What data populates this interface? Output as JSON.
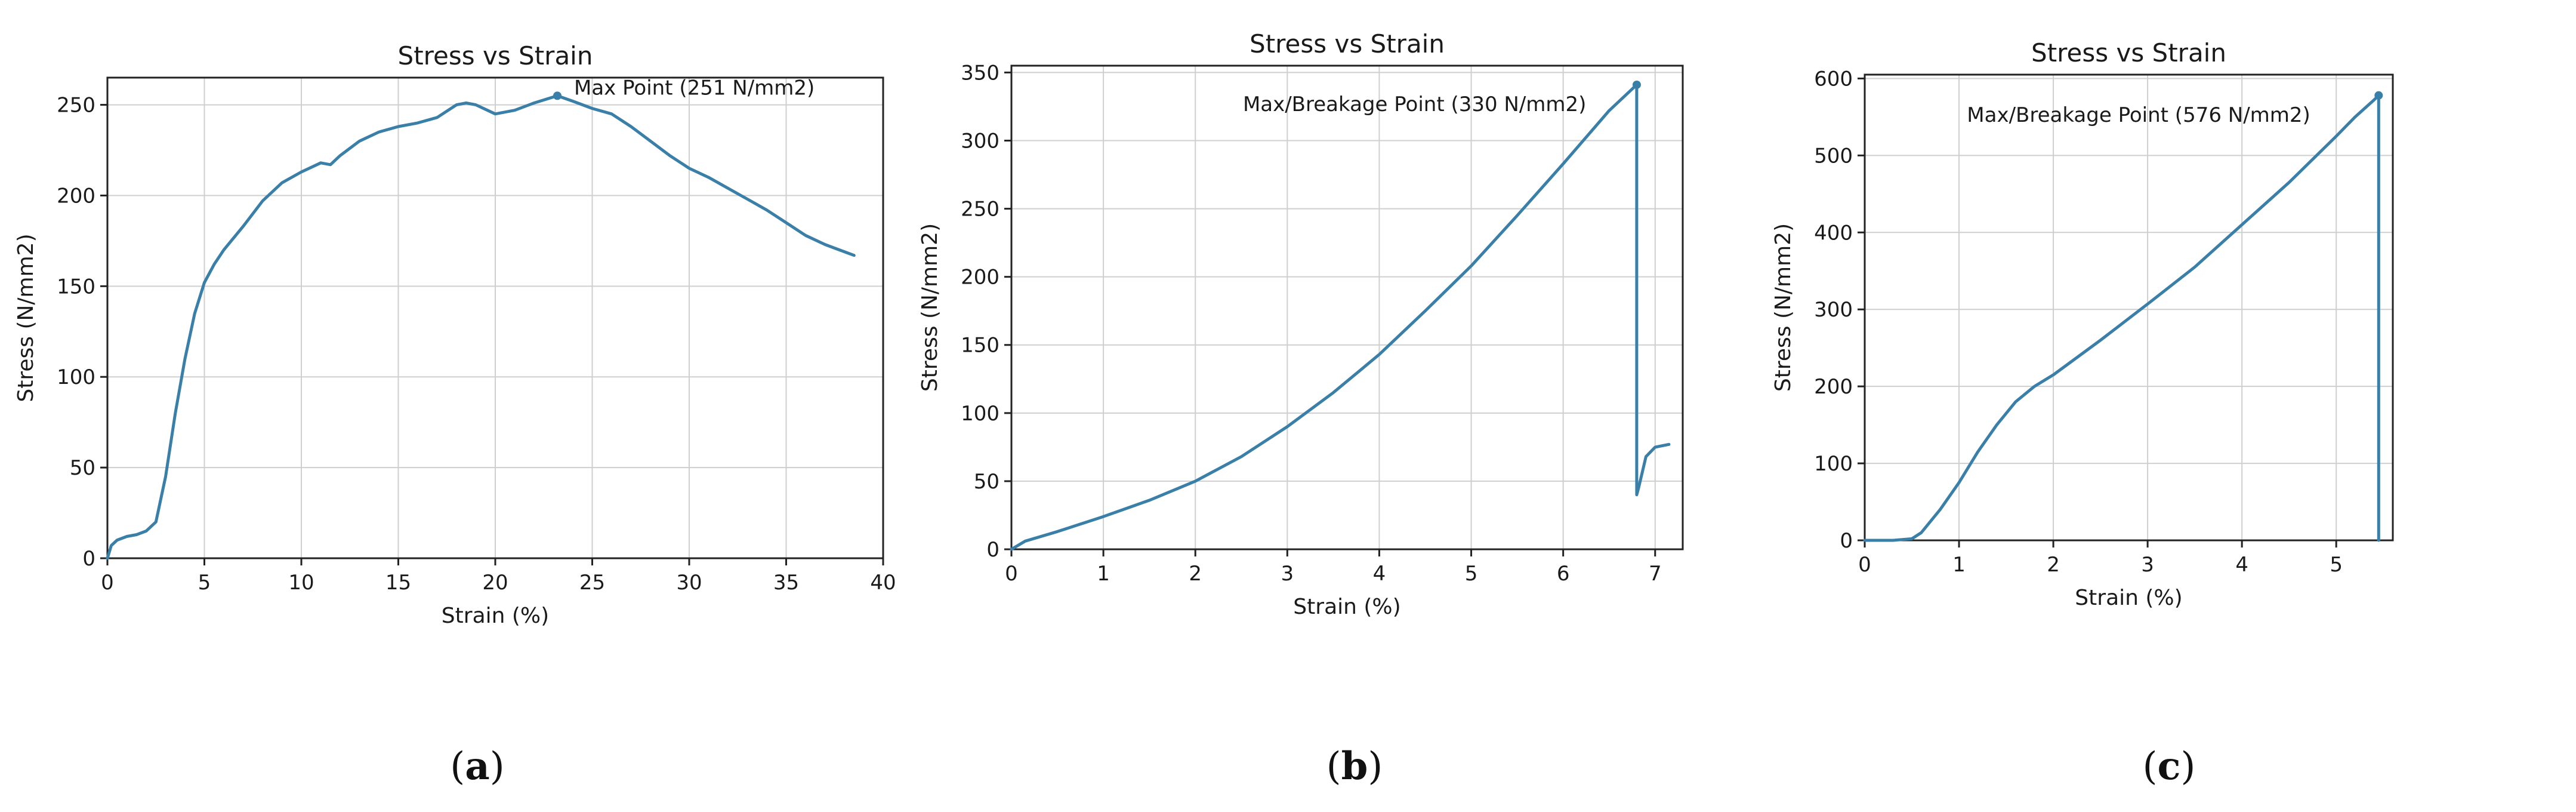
{
  "chart_data": [
    {
      "type": "line",
      "title": "Stress vs Strain",
      "xlabel": "Strain (%)",
      "ylabel": "Stress (N/mm2)",
      "xlim": [
        0,
        40
      ],
      "ylim": [
        0,
        265
      ],
      "xticks": [
        0,
        5,
        10,
        15,
        20,
        25,
        30,
        35,
        40
      ],
      "yticks": [
        0,
        50,
        100,
        150,
        200,
        250
      ],
      "grid": true,
      "line_color": "#3a7fa8",
      "annotation": {
        "text": "Max Point (251 N/mm2)",
        "x": 23.2,
        "y": 255
      },
      "caption_letter": "a",
      "series": [
        {
          "x": [
            0,
            0.2,
            0.5,
            1,
            1.5,
            2,
            2.5,
            3,
            3.5,
            4,
            4.5,
            5,
            5.5,
            6,
            7,
            8,
            9,
            10,
            11,
            11.5,
            12,
            13,
            14,
            15,
            16,
            17,
            18,
            18.5,
            19,
            20,
            21,
            22,
            23.2,
            24,
            25,
            26,
            27,
            28,
            29,
            30,
            31,
            32,
            33,
            34,
            35,
            36,
            37,
            38,
            38.5
          ],
          "y": [
            0,
            7,
            10,
            12,
            13,
            15,
            20,
            45,
            80,
            110,
            135,
            152,
            162,
            170,
            183,
            197,
            207,
            213,
            218,
            217,
            222,
            230,
            235,
            238,
            240,
            243,
            250,
            251,
            250,
            245,
            247,
            251,
            255,
            252,
            248,
            245,
            238,
            230,
            222,
            215,
            210,
            204,
            198,
            192,
            185,
            178,
            173,
            169,
            167
          ]
        }
      ]
    },
    {
      "type": "line",
      "title": "Stress vs Strain",
      "xlabel": "Strain (%)",
      "ylabel": "Stress (N/mm2)",
      "xlim": [
        0,
        7.3
      ],
      "ylim": [
        0,
        355
      ],
      "xticks": [
        0,
        1,
        2,
        3,
        4,
        5,
        6,
        7
      ],
      "yticks": [
        0,
        50,
        100,
        150,
        200,
        250,
        300,
        350
      ],
      "grid": true,
      "line_color": "#3a7fa8",
      "annotation": {
        "text": "Max/Breakage Point (330 N/mm2)",
        "x": 6.8,
        "y": 341
      },
      "caption_letter": "b",
      "series": [
        {
          "x": [
            0,
            0.15,
            0.5,
            1,
            1.5,
            2,
            2.5,
            3,
            3.5,
            4,
            4.5,
            5,
            5.5,
            6,
            6.5,
            6.8,
            6.8,
            6.82,
            6.9,
            7.0,
            7.15
          ],
          "y": [
            0,
            6,
            13,
            24,
            36,
            50,
            68,
            90,
            115,
            143,
            175,
            208,
            245,
            283,
            322,
            341,
            40,
            45,
            68,
            75,
            77
          ]
        }
      ]
    },
    {
      "type": "line",
      "title": "Stress vs Strain",
      "xlabel": "Strain (%)",
      "ylabel": "Stress (N/mm2)",
      "xlim": [
        0,
        5.6
      ],
      "ylim": [
        0,
        605
      ],
      "xticks": [
        0,
        1,
        2,
        3,
        4,
        5
      ],
      "yticks": [
        0,
        100,
        200,
        300,
        400,
        500,
        600
      ],
      "grid": true,
      "line_color": "#3a7fa8",
      "annotation": {
        "text": "Max/Breakage Point (576 N/mm2)",
        "x": 5.45,
        "y": 578
      },
      "caption_letter": "c",
      "series": [
        {
          "x": [
            0,
            0.3,
            0.5,
            0.6,
            0.8,
            1.0,
            1.2,
            1.4,
            1.6,
            1.8,
            2.0,
            2.5,
            3.0,
            3.5,
            4.0,
            4.5,
            5.0,
            5.2,
            5.4,
            5.45,
            5.45
          ],
          "y": [
            0,
            0,
            2,
            10,
            40,
            75,
            115,
            150,
            180,
            200,
            215,
            260,
            307,
            355,
            410,
            465,
            525,
            550,
            572,
            578,
            0
          ]
        }
      ]
    }
  ]
}
